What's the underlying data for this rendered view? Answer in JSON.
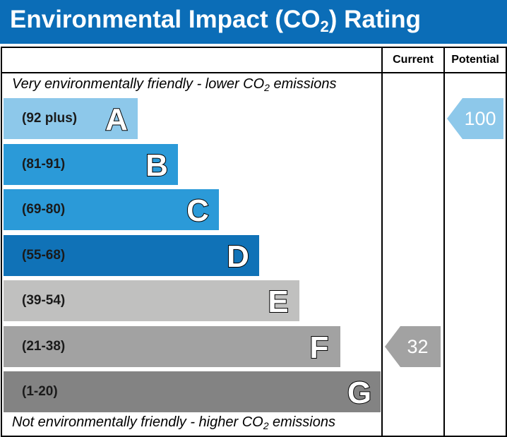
{
  "header": {
    "title_before": "Environmental Impact (CO",
    "title_sub": "2",
    "title_after": ") Rating",
    "background": "#0b6db7"
  },
  "columns": {
    "current": "Current",
    "potential": "Potential"
  },
  "notes": {
    "top_before": "Very environmentally friendly - lower CO",
    "top_sub": "2",
    "top_after": " emissions",
    "bottom_before": "Not environmentally friendly - higher CO",
    "bottom_sub": "2",
    "bottom_after": " emissions"
  },
  "chart_data": {
    "type": "bar",
    "categories": [
      "A",
      "B",
      "C",
      "D",
      "E",
      "F",
      "G"
    ],
    "bands": [
      {
        "letter": "A",
        "range": "(92 plus)",
        "color": "#8dc8ea"
      },
      {
        "letter": "B",
        "range": "(81-91)",
        "color": "#2b9ad8"
      },
      {
        "letter": "C",
        "range": "(69-80)",
        "color": "#2b9ad8"
      },
      {
        "letter": "D",
        "range": "(55-68)",
        "color": "#1072b7"
      },
      {
        "letter": "E",
        "range": "(39-54)",
        "color": "#c0c0bf"
      },
      {
        "letter": "F",
        "range": "(21-38)",
        "color": "#a2a2a2"
      },
      {
        "letter": "G",
        "range": "(1-20)",
        "color": "#838383"
      }
    ],
    "current": {
      "value": "32",
      "band": "F",
      "color": "#a2a2a2"
    },
    "potential": {
      "value": "100",
      "band": "A",
      "color": "#8dc8ea"
    }
  }
}
